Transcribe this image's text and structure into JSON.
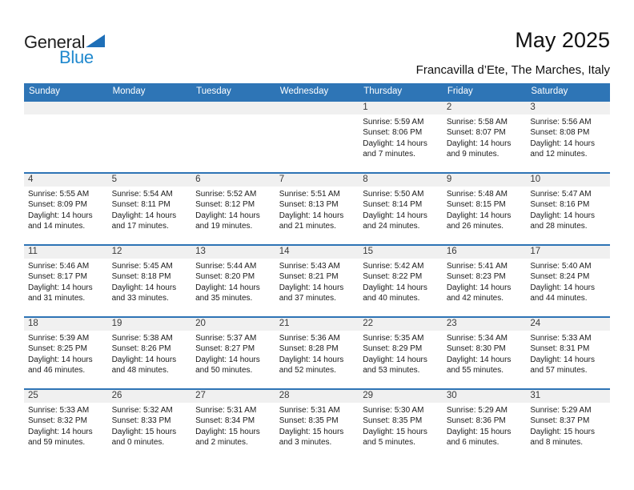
{
  "logo": {
    "text_top": "General",
    "text_bottom": "Blue"
  },
  "header": {
    "title": "May 2025",
    "location": "Francavilla d’Ete, The Marches, Italy"
  },
  "colors": {
    "header_blue": "#2E75B6",
    "row_border_blue": "#2E74B5",
    "day_strip_gray": "#F0F0F0",
    "logo_blue": "#2089CE",
    "logo_triangle_blue": "#1E6FB8"
  },
  "calendar": {
    "weekday_headers": [
      "Sunday",
      "Monday",
      "Tuesday",
      "Wednesday",
      "Thursday",
      "Friday",
      "Saturday"
    ],
    "weeks": [
      [
        {
          "day": "",
          "sunrise": "",
          "sunset": "",
          "daylight": ""
        },
        {
          "day": "",
          "sunrise": "",
          "sunset": "",
          "daylight": ""
        },
        {
          "day": "",
          "sunrise": "",
          "sunset": "",
          "daylight": ""
        },
        {
          "day": "",
          "sunrise": "",
          "sunset": "",
          "daylight": ""
        },
        {
          "day": "1",
          "sunrise": "Sunrise: 5:59 AM",
          "sunset": "Sunset: 8:06 PM",
          "daylight": "Daylight: 14 hours and 7 minutes."
        },
        {
          "day": "2",
          "sunrise": "Sunrise: 5:58 AM",
          "sunset": "Sunset: 8:07 PM",
          "daylight": "Daylight: 14 hours and 9 minutes."
        },
        {
          "day": "3",
          "sunrise": "Sunrise: 5:56 AM",
          "sunset": "Sunset: 8:08 PM",
          "daylight": "Daylight: 14 hours and 12 minutes."
        }
      ],
      [
        {
          "day": "4",
          "sunrise": "Sunrise: 5:55 AM",
          "sunset": "Sunset: 8:09 PM",
          "daylight": "Daylight: 14 hours and 14 minutes."
        },
        {
          "day": "5",
          "sunrise": "Sunrise: 5:54 AM",
          "sunset": "Sunset: 8:11 PM",
          "daylight": "Daylight: 14 hours and 17 minutes."
        },
        {
          "day": "6",
          "sunrise": "Sunrise: 5:52 AM",
          "sunset": "Sunset: 8:12 PM",
          "daylight": "Daylight: 14 hours and 19 minutes."
        },
        {
          "day": "7",
          "sunrise": "Sunrise: 5:51 AM",
          "sunset": "Sunset: 8:13 PM",
          "daylight": "Daylight: 14 hours and 21 minutes."
        },
        {
          "day": "8",
          "sunrise": "Sunrise: 5:50 AM",
          "sunset": "Sunset: 8:14 PM",
          "daylight": "Daylight: 14 hours and 24 minutes."
        },
        {
          "day": "9",
          "sunrise": "Sunrise: 5:48 AM",
          "sunset": "Sunset: 8:15 PM",
          "daylight": "Daylight: 14 hours and 26 minutes."
        },
        {
          "day": "10",
          "sunrise": "Sunrise: 5:47 AM",
          "sunset": "Sunset: 8:16 PM",
          "daylight": "Daylight: 14 hours and 28 minutes."
        }
      ],
      [
        {
          "day": "11",
          "sunrise": "Sunrise: 5:46 AM",
          "sunset": "Sunset: 8:17 PM",
          "daylight": "Daylight: 14 hours and 31 minutes."
        },
        {
          "day": "12",
          "sunrise": "Sunrise: 5:45 AM",
          "sunset": "Sunset: 8:18 PM",
          "daylight": "Daylight: 14 hours and 33 minutes."
        },
        {
          "day": "13",
          "sunrise": "Sunrise: 5:44 AM",
          "sunset": "Sunset: 8:20 PM",
          "daylight": "Daylight: 14 hours and 35 minutes."
        },
        {
          "day": "14",
          "sunrise": "Sunrise: 5:43 AM",
          "sunset": "Sunset: 8:21 PM",
          "daylight": "Daylight: 14 hours and 37 minutes."
        },
        {
          "day": "15",
          "sunrise": "Sunrise: 5:42 AM",
          "sunset": "Sunset: 8:22 PM",
          "daylight": "Daylight: 14 hours and 40 minutes."
        },
        {
          "day": "16",
          "sunrise": "Sunrise: 5:41 AM",
          "sunset": "Sunset: 8:23 PM",
          "daylight": "Daylight: 14 hours and 42 minutes."
        },
        {
          "day": "17",
          "sunrise": "Sunrise: 5:40 AM",
          "sunset": "Sunset: 8:24 PM",
          "daylight": "Daylight: 14 hours and 44 minutes."
        }
      ],
      [
        {
          "day": "18",
          "sunrise": "Sunrise: 5:39 AM",
          "sunset": "Sunset: 8:25 PM",
          "daylight": "Daylight: 14 hours and 46 minutes."
        },
        {
          "day": "19",
          "sunrise": "Sunrise: 5:38 AM",
          "sunset": "Sunset: 8:26 PM",
          "daylight": "Daylight: 14 hours and 48 minutes."
        },
        {
          "day": "20",
          "sunrise": "Sunrise: 5:37 AM",
          "sunset": "Sunset: 8:27 PM",
          "daylight": "Daylight: 14 hours and 50 minutes."
        },
        {
          "day": "21",
          "sunrise": "Sunrise: 5:36 AM",
          "sunset": "Sunset: 8:28 PM",
          "daylight": "Daylight: 14 hours and 52 minutes."
        },
        {
          "day": "22",
          "sunrise": "Sunrise: 5:35 AM",
          "sunset": "Sunset: 8:29 PM",
          "daylight": "Daylight: 14 hours and 53 minutes."
        },
        {
          "day": "23",
          "sunrise": "Sunrise: 5:34 AM",
          "sunset": "Sunset: 8:30 PM",
          "daylight": "Daylight: 14 hours and 55 minutes."
        },
        {
          "day": "24",
          "sunrise": "Sunrise: 5:33 AM",
          "sunset": "Sunset: 8:31 PM",
          "daylight": "Daylight: 14 hours and 57 minutes."
        }
      ],
      [
        {
          "day": "25",
          "sunrise": "Sunrise: 5:33 AM",
          "sunset": "Sunset: 8:32 PM",
          "daylight": "Daylight: 14 hours and 59 minutes."
        },
        {
          "day": "26",
          "sunrise": "Sunrise: 5:32 AM",
          "sunset": "Sunset: 8:33 PM",
          "daylight": "Daylight: 15 hours and 0 minutes."
        },
        {
          "day": "27",
          "sunrise": "Sunrise: 5:31 AM",
          "sunset": "Sunset: 8:34 PM",
          "daylight": "Daylight: 15 hours and 2 minutes."
        },
        {
          "day": "28",
          "sunrise": "Sunrise: 5:31 AM",
          "sunset": "Sunset: 8:35 PM",
          "daylight": "Daylight: 15 hours and 3 minutes."
        },
        {
          "day": "29",
          "sunrise": "Sunrise: 5:30 AM",
          "sunset": "Sunset: 8:35 PM",
          "daylight": "Daylight: 15 hours and 5 minutes."
        },
        {
          "day": "30",
          "sunrise": "Sunrise: 5:29 AM",
          "sunset": "Sunset: 8:36 PM",
          "daylight": "Daylight: 15 hours and 6 minutes."
        },
        {
          "day": "31",
          "sunrise": "Sunrise: 5:29 AM",
          "sunset": "Sunset: 8:37 PM",
          "daylight": "Daylight: 15 hours and 8 minutes."
        }
      ]
    ]
  }
}
